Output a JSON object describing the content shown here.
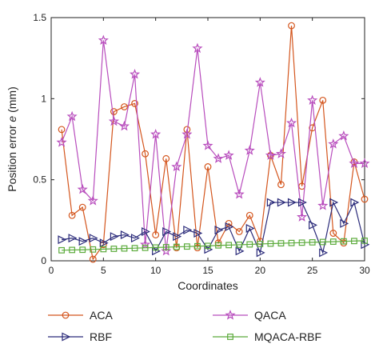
{
  "chart_data": {
    "type": "line",
    "xlabel": "Coordinates",
    "ylabel": "Position error e (mm)",
    "ylabel_plain": "Position error ",
    "ylabel_italic": "e",
    "ylabel_unit": " (mm)",
    "xlim": [
      0,
      30
    ],
    "ylim": [
      0,
      1.5
    ],
    "xticks": [
      "0",
      "5",
      "10",
      "15",
      "20",
      "25",
      "30"
    ],
    "yticks": [
      "0",
      "0.5",
      "1",
      "1.5"
    ],
    "grid": false,
    "legend_position": "bottom",
    "x": [
      1,
      2,
      3,
      4,
      5,
      6,
      7,
      8,
      9,
      10,
      11,
      12,
      13,
      14,
      15,
      16,
      17,
      18,
      19,
      20,
      21,
      22,
      23,
      24,
      25,
      26,
      27,
      28,
      29,
      30
    ],
    "series": [
      {
        "name": "ACA",
        "color": "#d4561e",
        "marker": "circle",
        "values": [
          0.81,
          0.28,
          0.33,
          0.01,
          0.1,
          0.92,
          0.95,
          0.97,
          0.66,
          0.16,
          0.63,
          0.08,
          0.81,
          0.08,
          0.58,
          0.11,
          0.23,
          0.18,
          0.28,
          0.12,
          0.65,
          0.47,
          1.45,
          0.46,
          0.82,
          0.99,
          0.17,
          0.11,
          0.61,
          0.38
        ]
      },
      {
        "name": "QACA",
        "color": "#b84dbd",
        "marker": "star",
        "values": [
          0.73,
          0.89,
          0.44,
          0.37,
          1.36,
          0.86,
          0.83,
          1.15,
          0.1,
          0.78,
          0.06,
          0.58,
          0.78,
          1.31,
          0.71,
          0.63,
          0.65,
          0.41,
          0.68,
          1.1,
          0.65,
          0.66,
          0.85,
          0.27,
          0.99,
          0.34,
          0.72,
          0.77,
          0.6,
          0.6
        ]
      },
      {
        "name": "RBF",
        "color": "#2b2b7a",
        "marker": "triangle-right",
        "values": [
          0.13,
          0.14,
          0.12,
          0.14,
          0.11,
          0.15,
          0.16,
          0.14,
          0.18,
          0.06,
          0.18,
          0.15,
          0.19,
          0.17,
          0.07,
          0.19,
          0.21,
          0.06,
          0.2,
          0.05,
          0.36,
          0.36,
          0.36,
          0.36,
          0.22,
          0.05,
          0.36,
          0.23,
          0.36,
          0.1
        ]
      },
      {
        "name": "MQACA-RBF",
        "color": "#5cab3c",
        "marker": "square",
        "values": [
          0.065,
          0.067,
          0.068,
          0.07,
          0.072,
          0.074,
          0.076,
          0.078,
          0.08,
          0.082,
          0.084,
          0.086,
          0.088,
          0.09,
          0.092,
          0.095,
          0.097,
          0.099,
          0.101,
          0.104,
          0.106,
          0.108,
          0.11,
          0.112,
          0.114,
          0.116,
          0.118,
          0.12,
          0.122,
          0.124
        ]
      }
    ]
  }
}
